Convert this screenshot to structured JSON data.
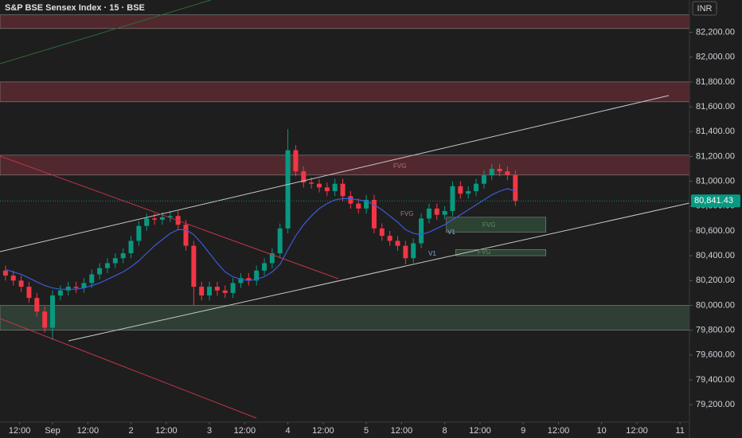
{
  "chart_data": {
    "type": "candlestick",
    "title": "S&P BSE Sensex Index · 15 · BSE",
    "currency": "INR",
    "up_color": "#089981",
    "down_color": "#f23645",
    "x": [
      -0.6,
      -0.5,
      -0.4,
      -0.3,
      -0.2,
      -0.1,
      0.0,
      0.1,
      0.2,
      0.3,
      0.4,
      0.5,
      0.6,
      0.7,
      0.8,
      0.9,
      1.0,
      1.1,
      1.2,
      1.3,
      1.4,
      1.5,
      1.6,
      1.7,
      1.8,
      1.9,
      2.0,
      2.1,
      2.2,
      2.3,
      2.4,
      2.5,
      2.6,
      2.7,
      2.8,
      2.9,
      3.0,
      3.1,
      3.2,
      3.3,
      3.4,
      3.5,
      3.6,
      3.7,
      3.8,
      3.9,
      4.0,
      4.1,
      4.2,
      4.3,
      4.4,
      4.5,
      4.6,
      4.7,
      4.8,
      4.9,
      5.0,
      5.1,
      5.2,
      5.3,
      5.4,
      5.5,
      5.6,
      5.7,
      5.8,
      5.9
    ],
    "open": [
      80280,
      80240,
      80200,
      80150,
      80060,
      79950,
      79820,
      80080,
      80120,
      80150,
      80140,
      80180,
      80250,
      80300,
      80340,
      80380,
      80420,
      80520,
      80640,
      80700,
      80690,
      80710,
      80720,
      80650,
      80480,
      80150,
      80080,
      80150,
      80120,
      80100,
      80180,
      80220,
      80200,
      80280,
      80340,
      80420,
      80620,
      81250,
      81080,
      80990,
      80980,
      80950,
      80920,
      80980,
      80880,
      80820,
      80780,
      80850,
      80620,
      80560,
      80520,
      80480,
      80380,
      80500,
      80700,
      80780,
      80730,
      80760,
      80960,
      80900,
      80920,
      80980,
      81050,
      81100,
      81080,
      81050
    ],
    "high": [
      80320,
      80280,
      80240,
      80190,
      80100,
      79990,
      80120,
      80160,
      80190,
      80190,
      80220,
      80290,
      80340,
      80380,
      80420,
      80460,
      80560,
      80680,
      80740,
      80740,
      80750,
      80760,
      80760,
      80690,
      80520,
      80190,
      80190,
      80190,
      80160,
      80220,
      80260,
      80260,
      80320,
      80380,
      80460,
      80660,
      81420,
      81290,
      81120,
      81030,
      81020,
      80990,
      81020,
      81020,
      80920,
      80860,
      80890,
      80890,
      80660,
      80600,
      80560,
      80520,
      80540,
      80740,
      80820,
      80820,
      80800,
      81000,
      81000,
      80960,
      81020,
      81090,
      81140,
      81140,
      81120,
      81090
    ],
    "low": [
      80200,
      80160,
      80110,
      80020,
      79910,
      79780,
      79720,
      80040,
      80080,
      80100,
      80100,
      80140,
      80210,
      80260,
      80300,
      80340,
      80380,
      80480,
      80600,
      80650,
      80650,
      80670,
      80610,
      80440,
      80000,
      80040,
      80040,
      80080,
      80060,
      80060,
      80140,
      80160,
      80160,
      80240,
      80300,
      80380,
      80580,
      81040,
      80950,
      80940,
      80910,
      80880,
      80880,
      80840,
      80780,
      80740,
      80740,
      80580,
      80520,
      80480,
      80440,
      80330,
      80340,
      80460,
      80660,
      80690,
      80690,
      80720,
      80860,
      80860,
      80880,
      80940,
      81010,
      81040,
      81010,
      80800
    ],
    "close": [
      80240,
      80200,
      80150,
      80060,
      79950,
      79820,
      80080,
      80120,
      80150,
      80140,
      80180,
      80250,
      80300,
      80340,
      80380,
      80420,
      80520,
      80640,
      80700,
      80690,
      80710,
      80720,
      80650,
      80480,
      80150,
      80080,
      80150,
      80120,
      80100,
      80180,
      80220,
      80200,
      80280,
      80340,
      80420,
      80620,
      81250,
      81080,
      80990,
      80980,
      80950,
      80920,
      80980,
      80880,
      80820,
      80780,
      80850,
      80620,
      80560,
      80520,
      80480,
      80380,
      80500,
      80700,
      80780,
      80730,
      80760,
      80960,
      80900,
      80920,
      80980,
      81050,
      81100,
      81080,
      81050,
      80841
    ],
    "ma": {
      "color": "#3a5bd9",
      "values": [
        80290,
        80270,
        80250,
        80220,
        80190,
        80160,
        80140,
        80130,
        80130,
        80130,
        80140,
        80160,
        80180,
        80210,
        80240,
        80270,
        80310,
        80360,
        80420,
        80480,
        80530,
        80580,
        80610,
        80610,
        80570,
        80500,
        80420,
        80340,
        80270,
        80230,
        80210,
        80200,
        80210,
        80230,
        80270,
        80330,
        80450,
        80560,
        80650,
        80720,
        80780,
        80820,
        80850,
        80860,
        80860,
        80850,
        80840,
        80810,
        80770,
        80720,
        80670,
        80610,
        80580,
        80570,
        80590,
        80620,
        80650,
        80690,
        80730,
        80770,
        80810,
        80850,
        80890,
        80920,
        80940,
        80920
      ]
    },
    "zones": [
      {
        "low": 82230,
        "high": 82340,
        "color": "#5a2a30"
      },
      {
        "low": 81640,
        "high": 81800,
        "color": "#5a2a30"
      },
      {
        "low": 81050,
        "high": 81210,
        "color": "#5a2a30"
      },
      {
        "low": 79800,
        "high": 80000,
        "color": "#34453a"
      },
      {
        "low": 80590,
        "high": 80710,
        "color": "#2f4a37",
        "from": 5.02,
        "to": 6.29
      },
      {
        "low": 80400,
        "high": 80450,
        "color": "#2f4a37",
        "from": 5.14,
        "to": 6.29
      }
    ],
    "annotations": [
      "FVG",
      "FVG",
      "FVG",
      "V1",
      "V1",
      "FVG"
    ],
    "last_price": {
      "value": 80841.43,
      "label": "80,841.43"
    },
    "xlim": [
      -0.67,
      8.12
    ],
    "ylim": [
      79060,
      82460
    ],
    "yticks": [
      {
        "value": 82200,
        "label": "82,200.00"
      },
      {
        "value": 82000,
        "label": "82,000.00"
      },
      {
        "value": 81800,
        "label": "81,800.00"
      },
      {
        "value": 81600,
        "label": "81,600.00"
      },
      {
        "value": 81400,
        "label": "81,400.00"
      },
      {
        "value": 81200,
        "label": "81,200.00"
      },
      {
        "value": 81000,
        "label": "81,000.00"
      },
      {
        "value": 80800,
        "label": "80,800.00"
      },
      {
        "value": 80600,
        "label": "80,600.00"
      },
      {
        "value": 80400,
        "label": "80,400.00"
      },
      {
        "value": 80200,
        "label": "80,200.00"
      },
      {
        "value": 80000,
        "label": "80,000.00"
      },
      {
        "value": 79800,
        "label": "79,800.00"
      },
      {
        "value": 79600,
        "label": "79,600.00"
      },
      {
        "value": 79400,
        "label": "79,400.00"
      },
      {
        "value": 79200,
        "label": "79,200.00"
      }
    ],
    "xticks": [
      {
        "value": -0.42,
        "label": "12:00"
      },
      {
        "value": 0,
        "label": "Sep"
      },
      {
        "value": 0.45,
        "label": "12:00"
      },
      {
        "value": 1,
        "label": "2"
      },
      {
        "value": 1.45,
        "label": "12:00"
      },
      {
        "value": 2,
        "label": "3"
      },
      {
        "value": 2.45,
        "label": "12:00"
      },
      {
        "value": 3,
        "label": "4"
      },
      {
        "value": 3.45,
        "label": "12:00"
      },
      {
        "value": 4,
        "label": "5"
      },
      {
        "value": 4.45,
        "label": "12:00"
      },
      {
        "value": 5,
        "label": "8"
      },
      {
        "value": 5.45,
        "label": "12:00"
      },
      {
        "value": 6,
        "label": "9"
      },
      {
        "value": 6.45,
        "label": "12:00"
      },
      {
        "value": 7,
        "label": "10"
      },
      {
        "value": 7.45,
        "label": "12:00"
      },
      {
        "value": 8,
        "label": "11"
      }
    ],
    "grid": false
  }
}
